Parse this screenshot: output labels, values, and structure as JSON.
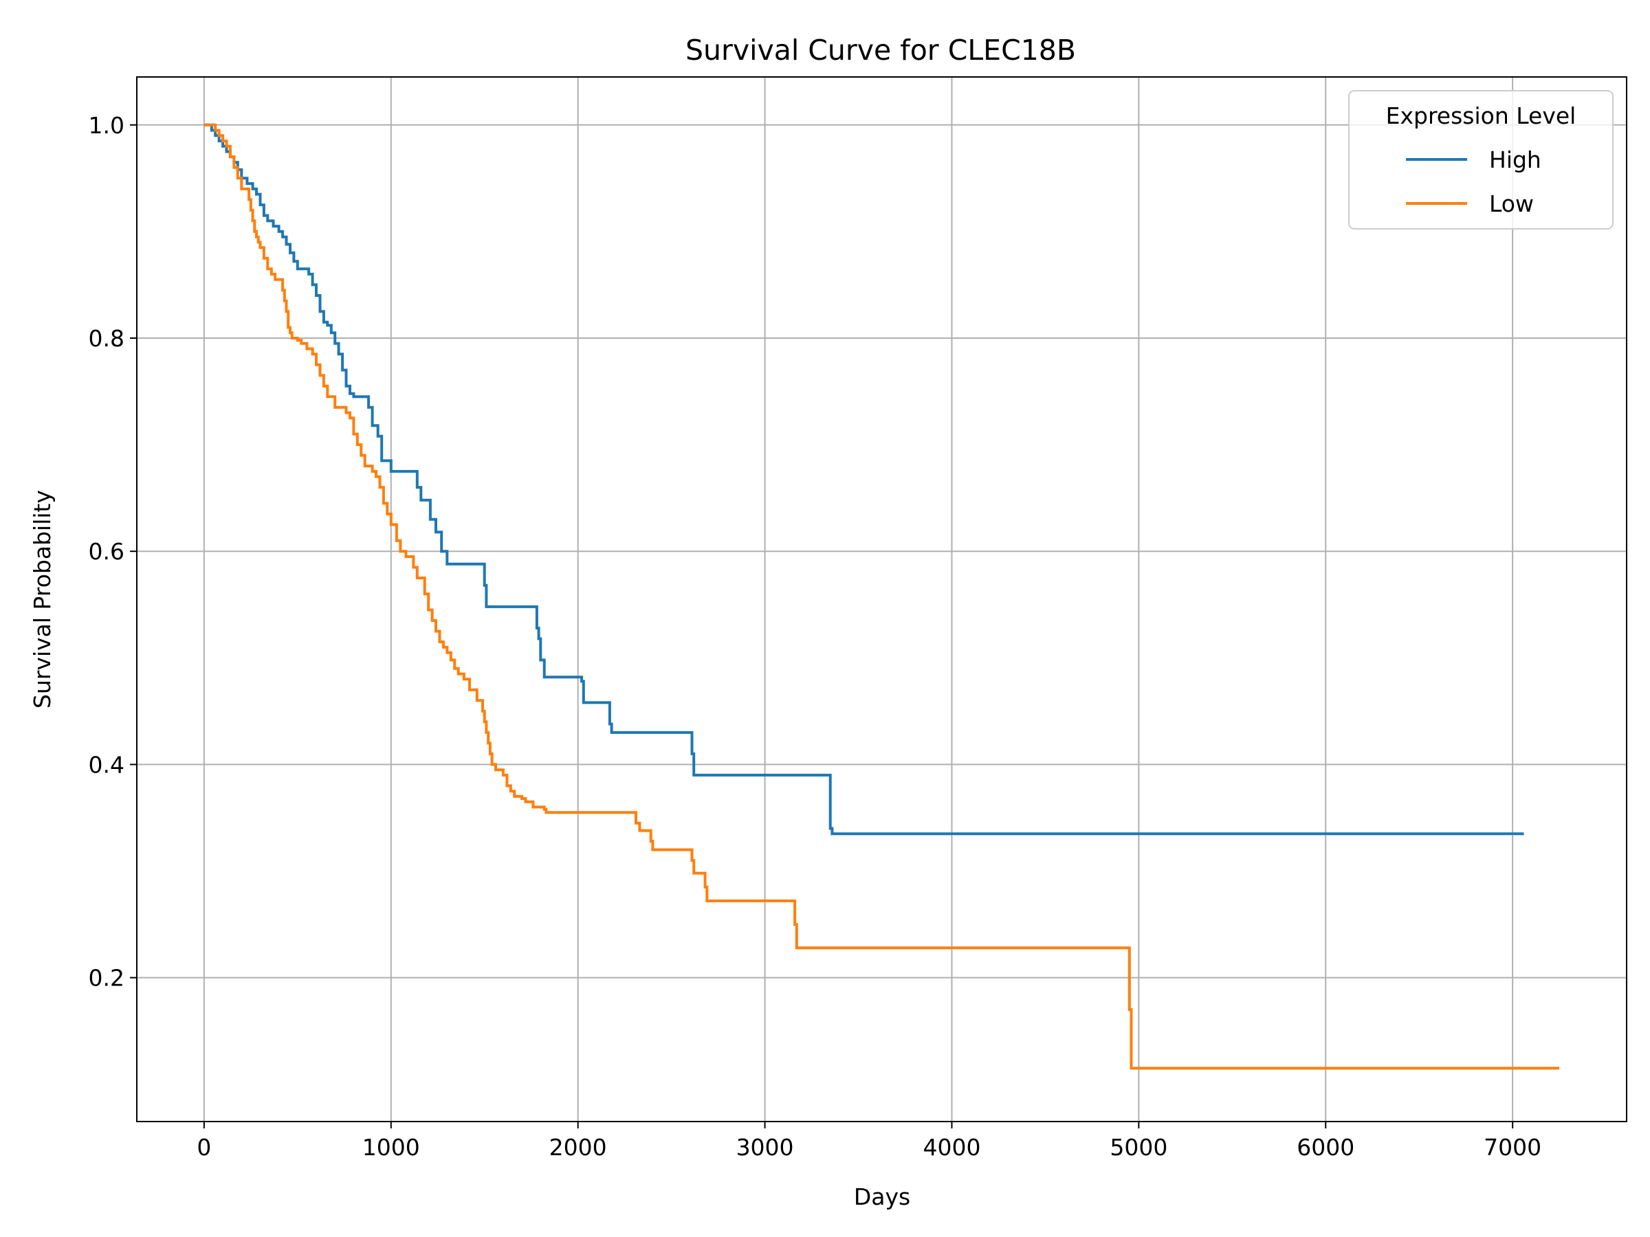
{
  "chart_data": {
    "type": "line",
    "step": "post",
    "title": "Survival Curve for CLEC18B",
    "xlabel": "Days",
    "ylabel": "Survival Probability",
    "xlim": [
      -360,
      7610
    ],
    "ylim": [
      0.065,
      1.045
    ],
    "xticks": [
      0,
      1000,
      2000,
      3000,
      4000,
      5000,
      6000,
      7000
    ],
    "xtick_labels": [
      "0",
      "1000",
      "2000",
      "3000",
      "4000",
      "5000",
      "6000",
      "7000"
    ],
    "yticks": [
      0.2,
      0.4,
      0.6,
      0.8,
      1.0
    ],
    "ytick_labels": [
      "0.2",
      "0.4",
      "0.6",
      "0.8",
      "1.0"
    ],
    "grid": true,
    "legend": {
      "title": "Expression Level",
      "position": "top-right"
    },
    "series": [
      {
        "name": "High",
        "color": "#1f77b4",
        "x": [
          0,
          40,
          60,
          80,
          100,
          120,
          140,
          160,
          180,
          200,
          230,
          260,
          280,
          300,
          320,
          340,
          370,
          400,
          420,
          440,
          460,
          480,
          500,
          520,
          560,
          580,
          600,
          620,
          640,
          660,
          680,
          700,
          720,
          740,
          760,
          780,
          800,
          880,
          900,
          930,
          950,
          1000,
          1140,
          1160,
          1210,
          1240,
          1270,
          1300,
          1500,
          1510,
          1780,
          1790,
          1800,
          1820,
          2020,
          2030,
          2170,
          2180,
          2610,
          2620,
          3350,
          3360,
          7060
        ],
        "y": [
          1.0,
          0.995,
          0.99,
          0.985,
          0.98,
          0.975,
          0.97,
          0.965,
          0.958,
          0.95,
          0.945,
          0.94,
          0.935,
          0.925,
          0.915,
          0.91,
          0.905,
          0.9,
          0.895,
          0.888,
          0.88,
          0.872,
          0.865,
          0.865,
          0.86,
          0.85,
          0.84,
          0.825,
          0.815,
          0.812,
          0.805,
          0.795,
          0.785,
          0.77,
          0.755,
          0.748,
          0.745,
          0.735,
          0.718,
          0.708,
          0.685,
          0.675,
          0.66,
          0.648,
          0.63,
          0.618,
          0.6,
          0.588,
          0.568,
          0.548,
          0.528,
          0.518,
          0.498,
          0.482,
          0.478,
          0.458,
          0.438,
          0.43,
          0.41,
          0.39,
          0.34,
          0.335,
          0.335
        ]
      },
      {
        "name": "Low",
        "color": "#ff7f0e",
        "x": [
          0,
          60,
          80,
          100,
          120,
          140,
          160,
          180,
          200,
          240,
          250,
          260,
          270,
          280,
          290,
          300,
          320,
          340,
          360,
          380,
          420,
          430,
          440,
          450,
          460,
          470,
          500,
          520,
          550,
          580,
          600,
          620,
          640,
          660,
          700,
          760,
          780,
          800,
          820,
          840,
          860,
          900,
          920,
          940,
          960,
          980,
          1000,
          1030,
          1050,
          1080,
          1120,
          1140,
          1180,
          1200,
          1220,
          1240,
          1260,
          1280,
          1300,
          1320,
          1340,
          1360,
          1390,
          1420,
          1460,
          1490,
          1500,
          1510,
          1520,
          1530,
          1540,
          1560,
          1600,
          1620,
          1640,
          1660,
          1700,
          1720,
          1760,
          1820,
          1830,
          2310,
          2330,
          2390,
          2400,
          2610,
          2620,
          2680,
          2690,
          3160,
          3170,
          4950,
          4960,
          7250
        ],
        "y": [
          1.0,
          0.995,
          0.99,
          0.985,
          0.98,
          0.97,
          0.96,
          0.95,
          0.94,
          0.93,
          0.92,
          0.91,
          0.9,
          0.895,
          0.89,
          0.885,
          0.875,
          0.865,
          0.86,
          0.855,
          0.845,
          0.835,
          0.825,
          0.81,
          0.805,
          0.8,
          0.798,
          0.795,
          0.79,
          0.785,
          0.775,
          0.765,
          0.755,
          0.745,
          0.735,
          0.73,
          0.725,
          0.71,
          0.7,
          0.69,
          0.68,
          0.675,
          0.67,
          0.66,
          0.645,
          0.635,
          0.625,
          0.61,
          0.6,
          0.595,
          0.585,
          0.575,
          0.56,
          0.545,
          0.535,
          0.525,
          0.515,
          0.51,
          0.505,
          0.498,
          0.49,
          0.485,
          0.48,
          0.47,
          0.46,
          0.45,
          0.44,
          0.43,
          0.42,
          0.41,
          0.4,
          0.395,
          0.39,
          0.38,
          0.375,
          0.37,
          0.368,
          0.365,
          0.36,
          0.358,
          0.355,
          0.345,
          0.338,
          0.328,
          0.32,
          0.31,
          0.298,
          0.285,
          0.272,
          0.25,
          0.228,
          0.17,
          0.115,
          0.115
        ]
      }
    ]
  }
}
